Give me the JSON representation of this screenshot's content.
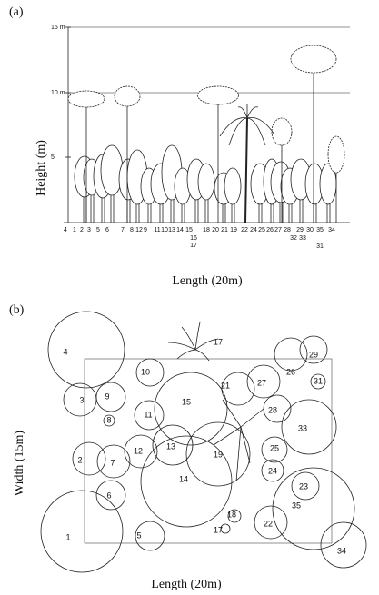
{
  "panel_a": {
    "label": "(a)",
    "y_axis_label": "Height (m)",
    "x_axis_label": "Length (20m)",
    "height_marks": [
      "15 m",
      "10 m",
      "5"
    ],
    "tree_numbers": [
      "4",
      "1",
      "2",
      "3",
      "5",
      "6",
      "7",
      "8",
      "12",
      "9",
      "11",
      "10",
      "13",
      "14",
      "15",
      "16",
      "17",
      "18",
      "20",
      "21",
      "19",
      "22",
      "24",
      "25",
      "26",
      "27",
      "28",
      "32",
      "33",
      "29",
      "30",
      "35",
      "31",
      "34"
    ]
  },
  "panel_b": {
    "label": "(b)",
    "y_axis_label": "Width (15m)",
    "x_axis_label": "Length (20m)",
    "crowns": [
      "1",
      "2",
      "3",
      "4",
      "5",
      "6",
      "7",
      "8",
      "9",
      "10",
      "11",
      "12",
      "13",
      "14",
      "15",
      "17",
      "18",
      "19",
      "21",
      "22",
      "23",
      "24",
      "25",
      "26",
      "27",
      "28",
      "29",
      "31",
      "33",
      "34",
      "35",
      "17"
    ]
  }
}
